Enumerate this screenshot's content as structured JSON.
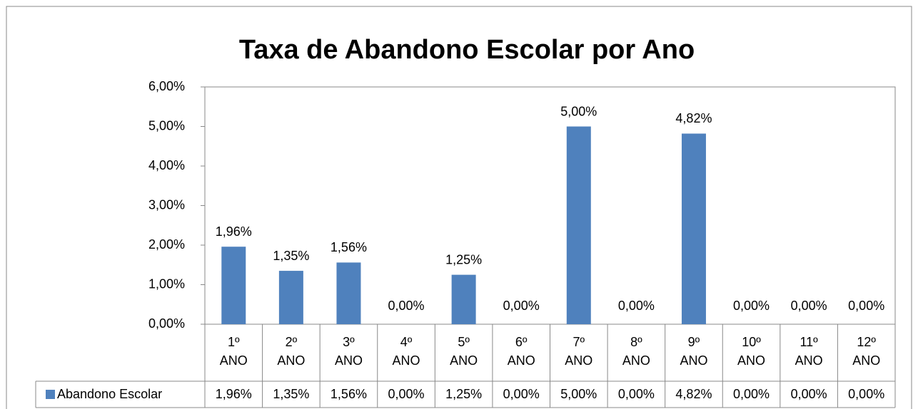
{
  "chart_data": {
    "type": "bar",
    "title": "Taxa de Abandono Escolar por Ano",
    "categories": [
      "1º ANO",
      "2º ANO",
      "3º ANO",
      "4º ANO",
      "5º ANO",
      "6º ANO",
      "7º ANO",
      "8º ANO",
      "9º ANO",
      "10º ANO",
      "11º ANO",
      "12º ANO"
    ],
    "series": [
      {
        "name": "Abandono Escolar",
        "color": "#4f81bd",
        "values": [
          1.96,
          1.35,
          1.56,
          0,
          1.25,
          0,
          5.0,
          0,
          4.82,
          0,
          0,
          0
        ],
        "value_labels": [
          "1,96%",
          "1,35%",
          "1,56%",
          "0,00%",
          "1,25%",
          "0,00%",
          "5,00%",
          "0,00%",
          "4,82%",
          "0,00%",
          "0,00%",
          "0,00%"
        ]
      }
    ],
    "ylim": [
      0,
      6
    ],
    "yticks": [
      {
        "value": 0,
        "label": "0,00%"
      },
      {
        "value": 1,
        "label": "1,00%"
      },
      {
        "value": 2,
        "label": "2,00%"
      },
      {
        "value": 3,
        "label": "3,00%"
      },
      {
        "value": 4,
        "label": "4,00%"
      },
      {
        "value": 5,
        "label": "5,00%"
      },
      {
        "value": 6,
        "label": "6,00%"
      }
    ],
    "grid": false
  }
}
